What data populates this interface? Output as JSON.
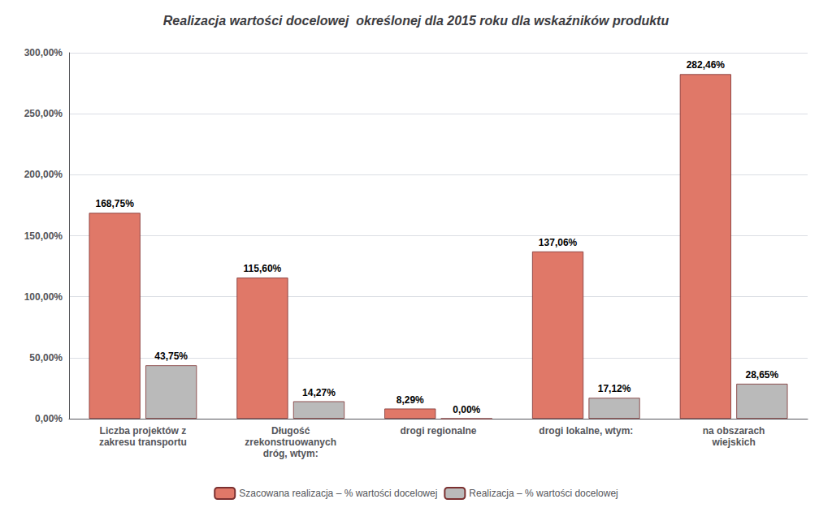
{
  "chart_data": {
    "type": "bar",
    "title": "Realizacja wartości docelowej  określonej dla 2015 roku dla wskaźników produktu",
    "categories": [
      "Liczba projektów z\nzakresu transportu",
      "Długość\nzrekonstruowanych\ndróg, wtym:",
      "drogi regionalne",
      "drogi lokalne, wtym:",
      "na obszarach\nwiejskich"
    ],
    "series": [
      {
        "name": "Szacowana realizacja – % wartości docelowej",
        "color": "#E07868",
        "values": [
          168.75,
          115.6,
          8.29,
          137.06,
          282.46
        ],
        "value_labels": [
          "168,75%",
          "115,60%",
          "8,29%",
          "137,06%",
          "282,46%"
        ]
      },
      {
        "name": "Realizacja – % wartości docelowej",
        "color": "#BABABA",
        "values": [
          43.75,
          14.27,
          0.0,
          17.12,
          28.65
        ],
        "value_labels": [
          "43,75%",
          "14,27%",
          "0,00%",
          "17,12%",
          "28,65%"
        ]
      }
    ],
    "ylim": [
      0,
      300
    ],
    "yticks": [
      {
        "value": 0,
        "label": "0,00%"
      },
      {
        "value": 50,
        "label": "50,00%"
      },
      {
        "value": 100,
        "label": "100,00%"
      },
      {
        "value": 150,
        "label": "150,00%"
      },
      {
        "value": 200,
        "label": "200,00%"
      },
      {
        "value": 250,
        "label": "250,00%"
      },
      {
        "value": 300,
        "label": "300,00%"
      }
    ],
    "grid": true,
    "data_labels": true,
    "legend": "bottom"
  }
}
